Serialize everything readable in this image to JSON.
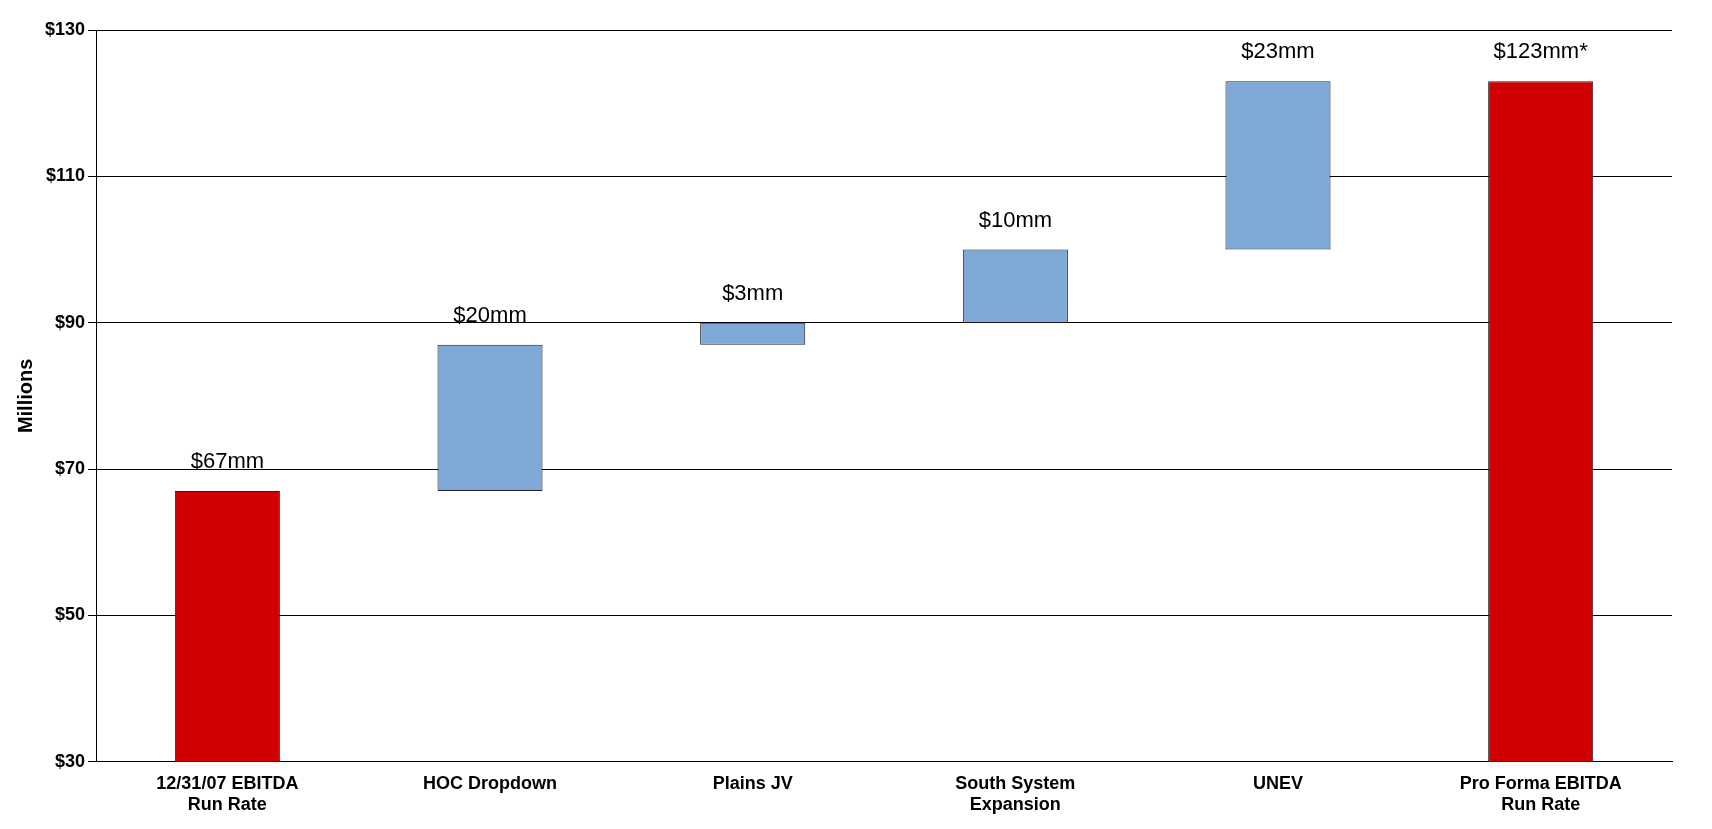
{
  "chart_data": {
    "type": "bar",
    "ylabel": "Millions",
    "categories": [
      "12/31/07 EBITDA Run Rate",
      "HOC Dropdown",
      "Plains JV",
      "South System Expansion",
      "UNEV",
      "Pro Forma EBITDA Run Rate"
    ],
    "values": [
      67,
      20,
      3,
      10,
      23,
      123
    ],
    "base": [
      null,
      67,
      87,
      90,
      100,
      null
    ],
    "colors": [
      "#d10000",
      "#7ea8d6",
      "#7ea8d6",
      "#7ea8d6",
      "#7ea8d6",
      "#d10000"
    ],
    "value_labels": [
      "$67mm",
      "$20mm",
      "$3mm",
      "$10mm",
      "$23mm",
      "$123mm*"
    ],
    "ylim": [
      30,
      130
    ],
    "yticks": [
      {
        "value": 30,
        "label": "$30"
      },
      {
        "value": 50,
        "label": "$50"
      },
      {
        "value": 70,
        "label": "$70"
      },
      {
        "value": 90,
        "label": "$90"
      },
      {
        "value": 110,
        "label": "$110"
      },
      {
        "value": 130,
        "label": "$130"
      }
    ],
    "grid": "y",
    "legend": false
  }
}
